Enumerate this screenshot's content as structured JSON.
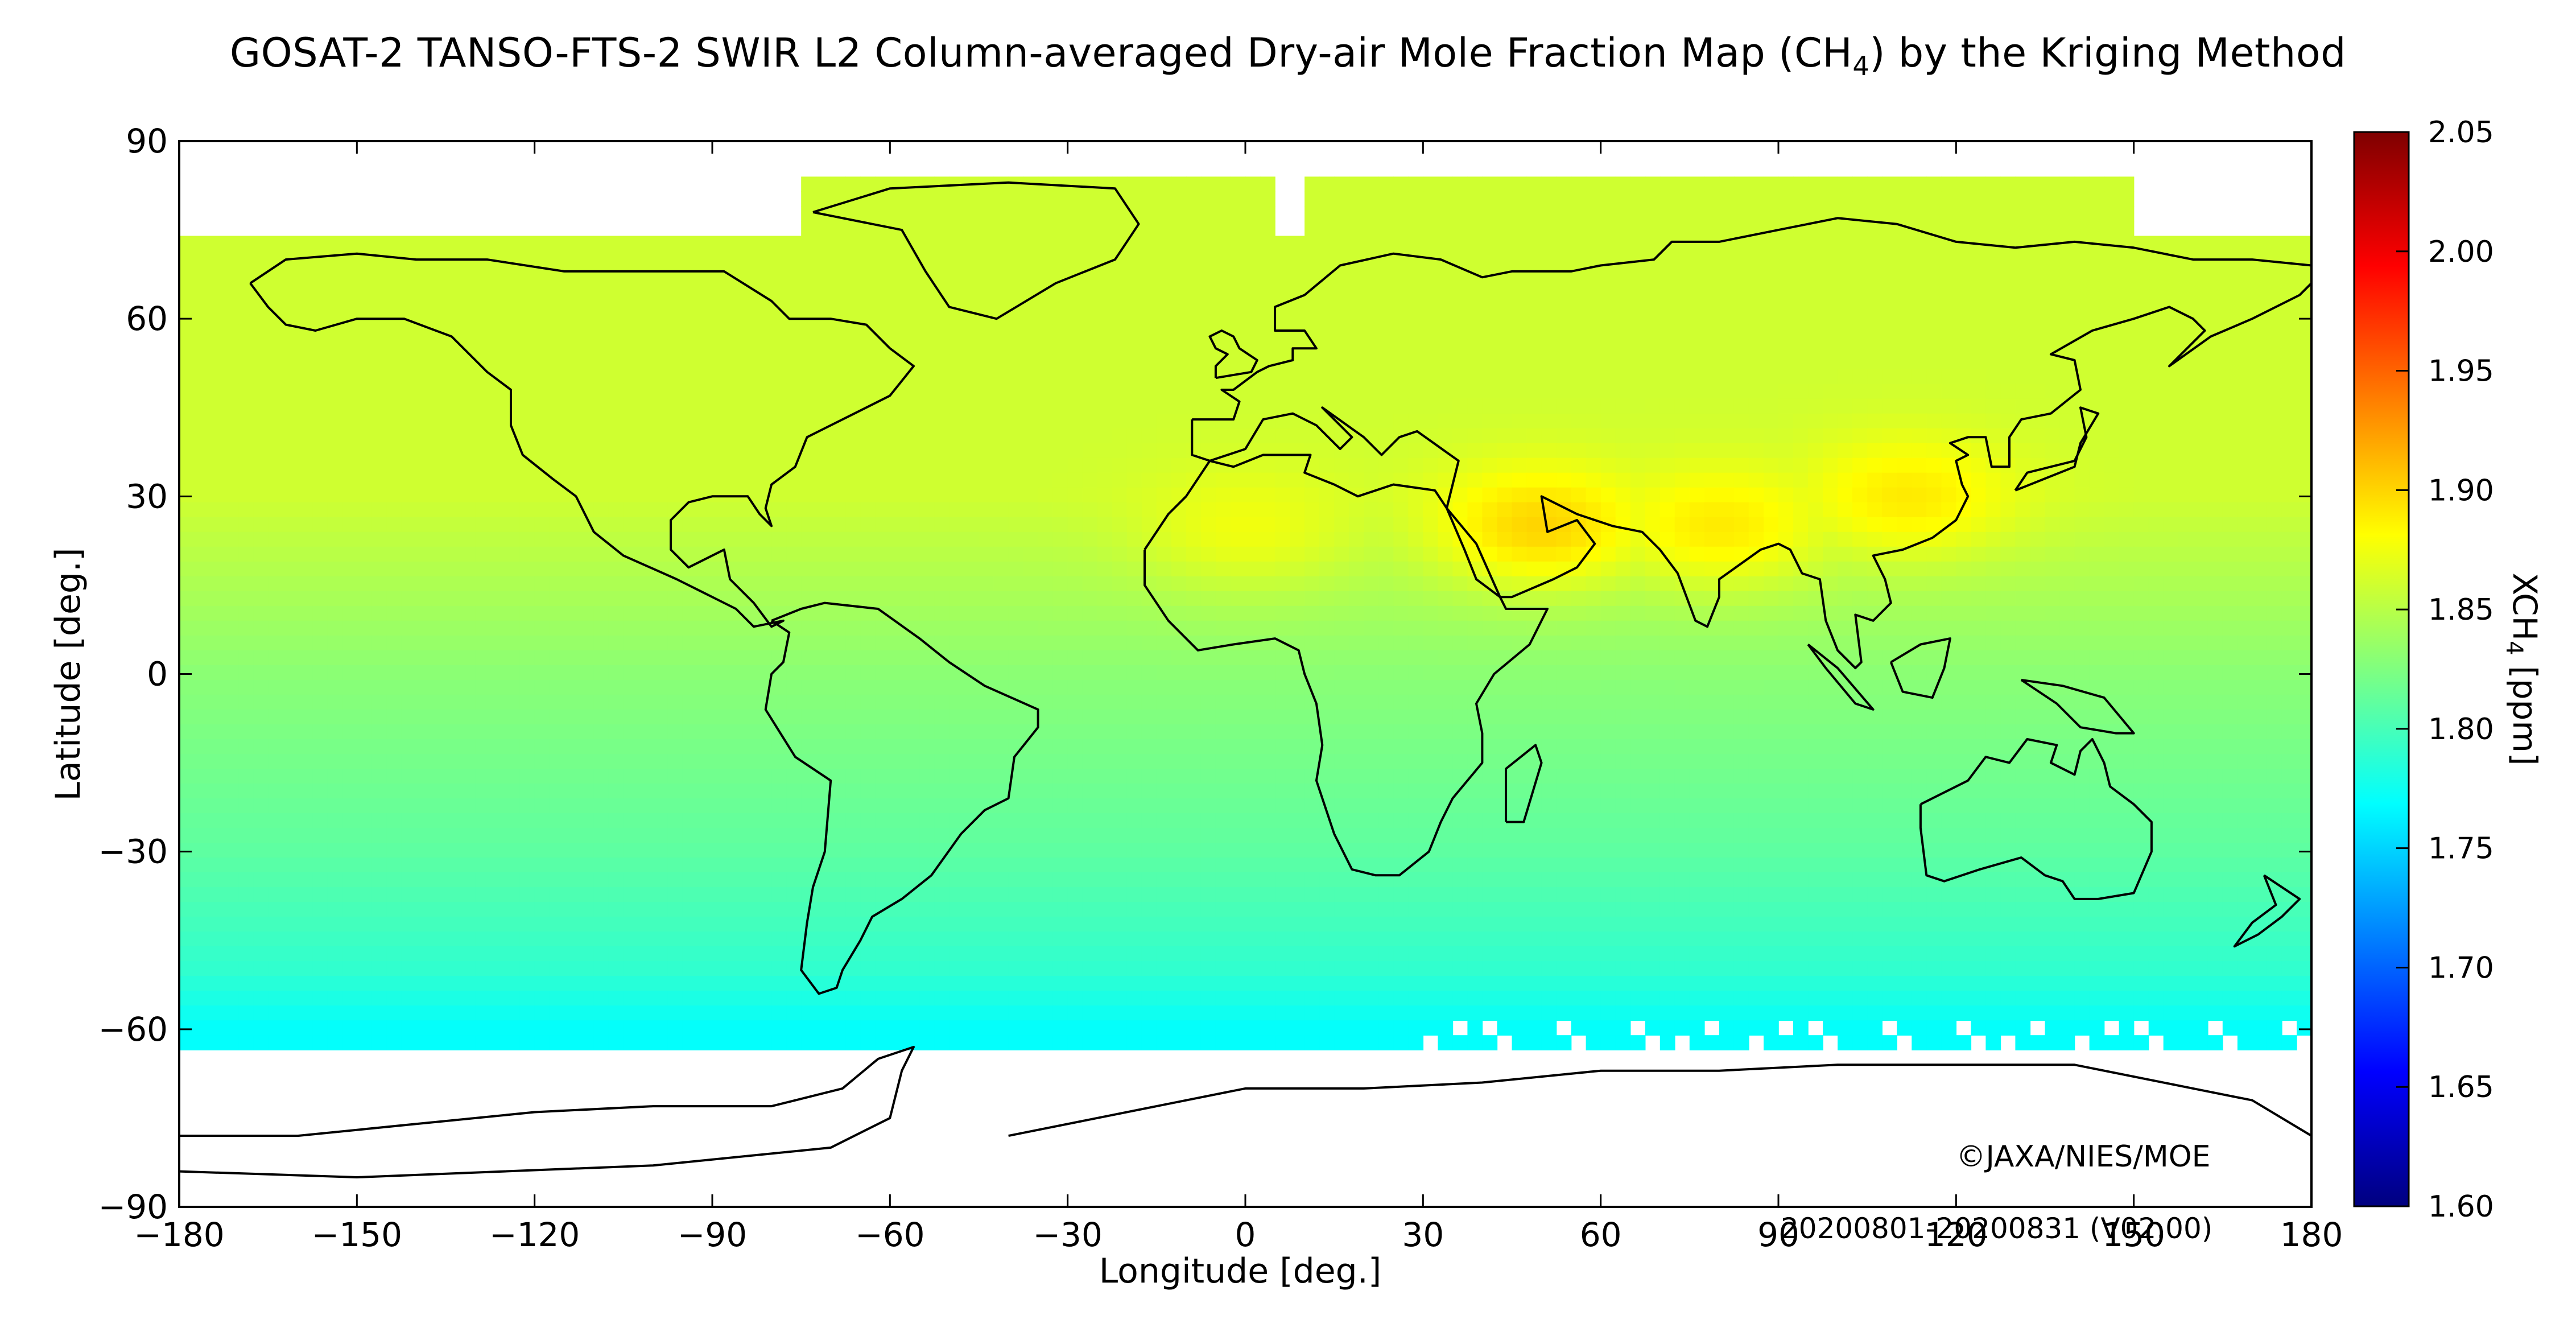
{
  "title": {
    "prefix": "GOSAT-2 TANSO-FTS-2 SWIR L2 Column-averaged Dry-air Mole Fraction Map (CH",
    "subscript": "4",
    "suffix": ") by the Kriging Method"
  },
  "copyright": "©JAXA/NIES/MOE",
  "date_range": "20200801-20200831 (V02.00)",
  "chart_data": {
    "type": "heatmap",
    "xlabel": "Longitude [deg.]",
    "ylabel": "Latitude [deg.]",
    "xlim": [
      -180,
      180
    ],
    "ylim": [
      -90,
      90
    ],
    "x_ticks": [
      -180,
      -150,
      -120,
      -90,
      -60,
      -30,
      0,
      30,
      60,
      90,
      120,
      150,
      180
    ],
    "y_ticks": [
      -90,
      -60,
      -30,
      0,
      30,
      60,
      90
    ],
    "x_tick_labels": [
      "−180",
      "−150",
      "−120",
      "−90",
      "−60",
      "−30",
      "0",
      "30",
      "60",
      "90",
      "120",
      "150",
      "180"
    ],
    "y_tick_labels": [
      "−90",
      "−60",
      "−30",
      "0",
      "30",
      "60",
      "90"
    ],
    "colorbar": {
      "label_prefix": "XCH",
      "label_subscript": "4",
      "label_suffix": " [ppm]",
      "min": 1.6,
      "max": 2.05,
      "ticks": [
        1.6,
        1.65,
        1.7,
        1.75,
        1.8,
        1.85,
        1.9,
        1.95,
        2.0,
        2.05
      ],
      "tick_labels": [
        "1.60",
        "1.65",
        "1.70",
        "1.75",
        "1.80",
        "1.85",
        "1.90",
        "1.95",
        "2.00",
        "2.05"
      ],
      "colormap": "jet"
    },
    "data_lat_range": [
      -63,
      84
    ],
    "field_values": [
      {
        "lat": 75,
        "xch4": 1.86
      },
      {
        "lat": 50,
        "xch4": 1.86
      },
      {
        "lat": 30,
        "xch4": 1.86
      },
      {
        "lat": 0,
        "xch4": 1.83
      },
      {
        "lat": -30,
        "xch4": 1.81
      },
      {
        "lat": -50,
        "xch4": 1.79
      },
      {
        "lat": -60,
        "xch4": 1.77
      }
    ],
    "hotspots": [
      {
        "region": "Arabian Peninsula / Middle East",
        "lon": 50,
        "lat": 25,
        "xch4": 1.9
      },
      {
        "region": "Northern India",
        "lon": 80,
        "lat": 25,
        "xch4": 1.89
      },
      {
        "region": "Eastern China",
        "lon": 112,
        "lat": 30,
        "xch4": 1.89
      },
      {
        "region": "Sahara",
        "lon": 0,
        "lat": 25,
        "xch4": 1.875
      }
    ],
    "grid": false
  }
}
